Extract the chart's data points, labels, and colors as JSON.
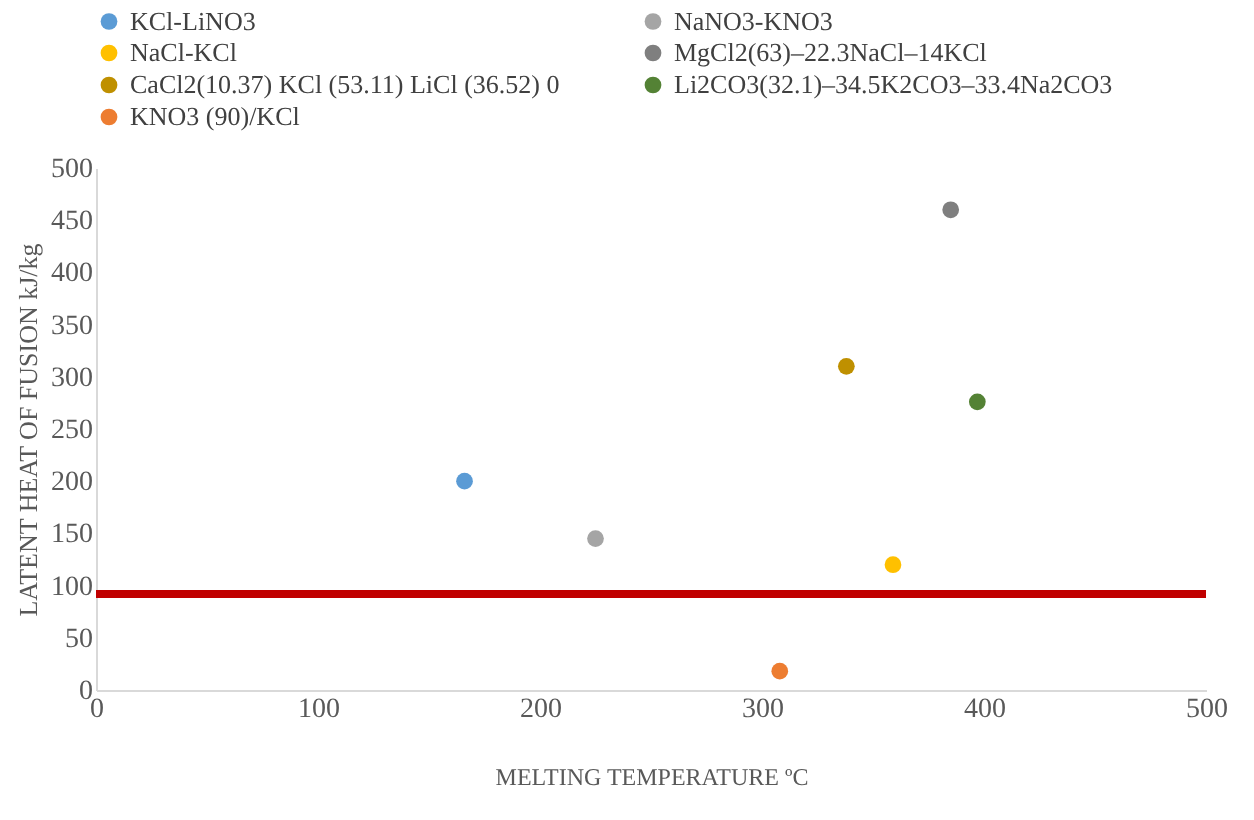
{
  "chart_data": {
    "type": "scatter",
    "xlabel": "MELTING TEMPERATURE ºC",
    "ylabel": "LATENT HEAT OF FUSION kJ/kg",
    "xlim": [
      0,
      500
    ],
    "xticks": [
      0,
      100,
      200,
      300,
      400,
      500
    ],
    "ylim": [
      0,
      500
    ],
    "yticks": [
      0,
      50,
      100,
      150,
      200,
      250,
      300,
      350,
      400,
      450,
      500
    ],
    "grid": false,
    "legend": "top",
    "marker": "circle",
    "series": [
      {
        "name": "KCl-LiNO3",
        "color": "#5b9bd5",
        "x": [
          166
        ],
        "values": [
          200
        ]
      },
      {
        "name": "NaNO3-KNO3",
        "color": "#a5a5a5",
        "x": [
          225
        ],
        "values": [
          145
        ]
      },
      {
        "name": "NaCl-KCl",
        "color": "#ffc000",
        "x": [
          359
        ],
        "values": [
          120
        ]
      },
      {
        "name": "MgCl2(63)–22.3NaCl–14KCl",
        "color": "#7f7f7f",
        "x": [
          385
        ],
        "values": [
          460
        ]
      },
      {
        "name": "CaCl2(10.37) KCl (53.11) LiCl (36.52) 0",
        "color": "#bf9000",
        "x": [
          338
        ],
        "values": [
          310
        ]
      },
      {
        "name": "Li2CO3(32.1)–34.5K2CO3–33.4Na2CO3",
        "color": "#548235",
        "x": [
          397
        ],
        "values": [
          276
        ]
      },
      {
        "name": "KNO3 (90)/KCl",
        "color": "#ed7d31",
        "x": [
          308
        ],
        "values": [
          18
        ]
      }
    ],
    "ref_lines": [
      {
        "axis": "y",
        "value": 92,
        "color": "#c00000"
      }
    ]
  }
}
